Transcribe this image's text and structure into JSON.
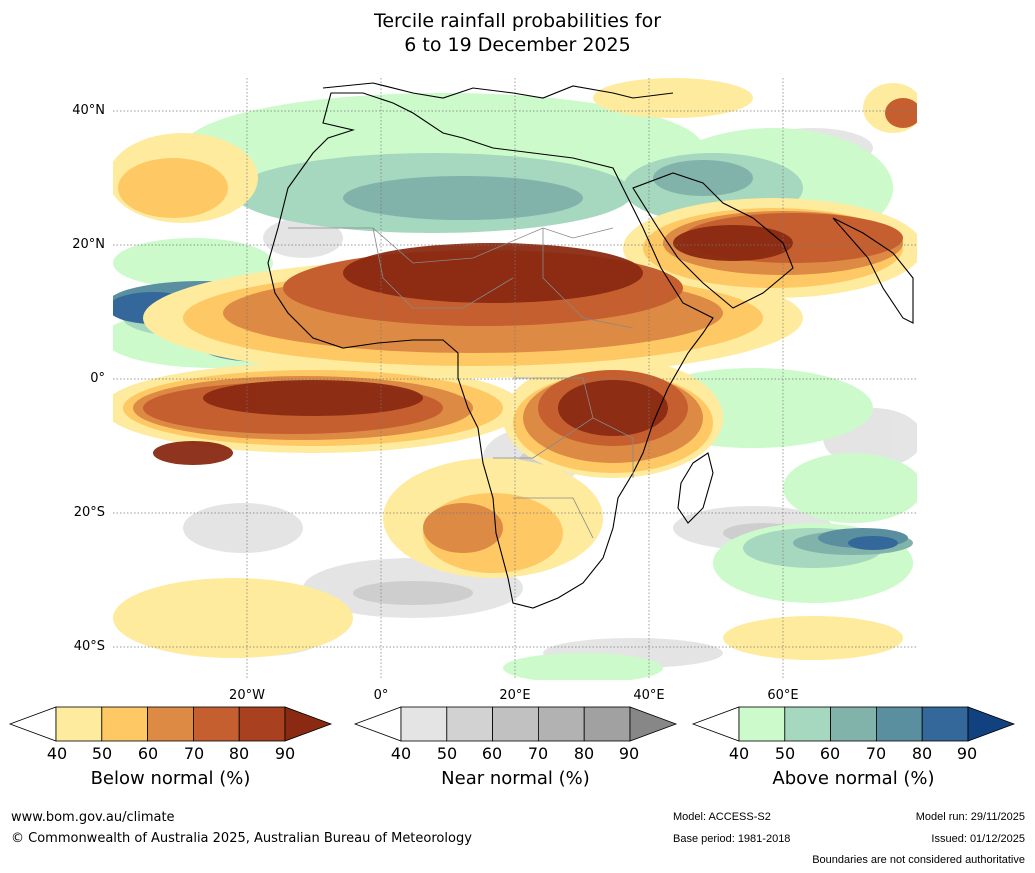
{
  "title": {
    "line1": "Tercile rainfall probabilities for",
    "line2": "6 to 19 December 2025"
  },
  "map": {
    "lat_labels": [
      "40°N",
      "20°N",
      "0°",
      "20°S",
      "40°S"
    ],
    "lon_labels": [
      "20°W",
      "0°",
      "20°E",
      "40°E",
      "60°E"
    ]
  },
  "legends": [
    {
      "title": "Below normal (%)",
      "ticks": [
        "40",
        "50",
        "60",
        "70",
        "80",
        "90"
      ],
      "colors": [
        "#ffffff",
        "#feeb9e",
        "#fec965",
        "#dd8a45",
        "#c65f2f",
        "#a9401f",
        "#8a2a12"
      ]
    },
    {
      "title": "Near normal (%)",
      "ticks": [
        "40",
        "50",
        "60",
        "70",
        "80",
        "90"
      ],
      "colors": [
        "#ffffff",
        "#e4e4e4",
        "#d2d2d2",
        "#c1c1c1",
        "#b2b2b2",
        "#a1a1a1",
        "#878787"
      ]
    },
    {
      "title": "Above normal (%)",
      "ticks": [
        "40",
        "50",
        "60",
        "70",
        "80",
        "90"
      ],
      "colors": [
        "#ffffff",
        "#ccfacb",
        "#a6d7bf",
        "#81b3ab",
        "#5a8f9f",
        "#34679a",
        "#12417f"
      ]
    }
  ],
  "footer": {
    "url": "www.bom.gov.au/climate",
    "copyright": "© Commonwealth of Australia 2025, Australian Bureau of Meteorology",
    "model": "Model: ACCESS-S2",
    "base_period": "Base period: 1981-2018",
    "model_run": "Model run: 29/11/2025",
    "issued": "Issued: 01/12/2025",
    "disclaimer": "Boundaries are not considered authoritative"
  }
}
